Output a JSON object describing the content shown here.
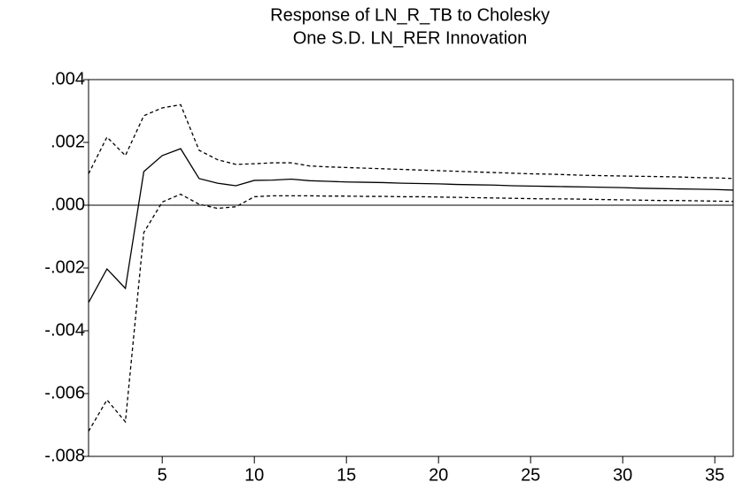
{
  "chart_data": {
    "type": "line",
    "title": [
      "Response of LN_R_TB to Cholesky",
      "One S.D. LN_RER Innovation"
    ],
    "x": [
      1,
      2,
      3,
      4,
      5,
      6,
      7,
      8,
      9,
      10,
      11,
      12,
      13,
      14,
      15,
      16,
      17,
      18,
      19,
      20,
      21,
      22,
      23,
      24,
      25,
      26,
      27,
      28,
      29,
      30,
      31,
      32,
      33,
      34,
      35,
      36
    ],
    "series": [
      {
        "color": "#000000",
        "dashed": false,
        "values": [
          -0.0031,
          -0.00203,
          -0.00265,
          0.00107,
          0.00158,
          0.0018,
          0.00085,
          0.0007,
          0.00062,
          0.00079,
          0.0008,
          0.00083,
          0.00078,
          0.00076,
          0.00074,
          0.00073,
          0.00072,
          0.0007,
          0.00069,
          0.00068,
          0.00066,
          0.00065,
          0.00064,
          0.00062,
          0.00061,
          0.0006,
          0.00059,
          0.00058,
          0.00057,
          0.00056,
          0.00054,
          0.00053,
          0.00052,
          0.00051,
          0.0005,
          0.00048
        ]
      },
      {
        "color": "#000000",
        "dashed": true,
        "values": [
          0.001,
          0.00217,
          0.00158,
          0.00285,
          0.0031,
          0.0032,
          0.00175,
          0.00145,
          0.0013,
          0.00132,
          0.00135,
          0.00135,
          0.00125,
          0.00122,
          0.0012,
          0.00118,
          0.00116,
          0.00114,
          0.00112,
          0.0011,
          0.00108,
          0.00106,
          0.00104,
          0.00102,
          0.001,
          0.00099,
          0.00097,
          0.00095,
          0.00094,
          0.00093,
          0.00092,
          0.00091,
          0.0009,
          0.00088,
          0.00087,
          0.00085
        ]
      },
      {
        "color": "#000000",
        "dashed": true,
        "values": [
          -0.0072,
          -0.0062,
          -0.0069,
          -0.00087,
          0.0001,
          0.00035,
          3e-05,
          -0.0001,
          -5e-05,
          0.00027,
          0.0003,
          0.0003,
          0.0003,
          0.00029,
          0.00029,
          0.00028,
          0.00028,
          0.00027,
          0.00027,
          0.00026,
          0.00025,
          0.00024,
          0.00023,
          0.00022,
          0.00021,
          0.0002,
          0.0002,
          0.00019,
          0.00018,
          0.00017,
          0.00016,
          0.00015,
          0.00015,
          0.00014,
          0.00013,
          0.00012
        ]
      }
    ],
    "xlim": [
      1,
      36
    ],
    "xticks": [
      5,
      10,
      15,
      20,
      25,
      30,
      35
    ],
    "ylim": [
      -0.008,
      0.004
    ],
    "yticks": [
      {
        "value": -0.008,
        "label": "-.008"
      },
      {
        "value": -0.006,
        "label": "-.006"
      },
      {
        "value": -0.004,
        "label": "-.004"
      },
      {
        "value": -0.002,
        "label": "-.002"
      },
      {
        "value": 0,
        "label": ".000"
      },
      {
        "value": 0.002,
        "label": ".002"
      },
      {
        "value": 0.004,
        "label": ".004"
      }
    ],
    "zero_line": true
  }
}
